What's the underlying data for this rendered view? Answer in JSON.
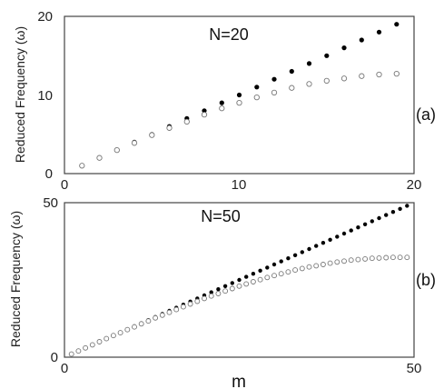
{
  "chart_data": [
    {
      "type": "scatter",
      "annotation": "N=20",
      "panel_label": "(a)",
      "xlabel": "",
      "ylabel": "Reduced Frequency (ω)",
      "xlim": [
        0,
        20
      ],
      "ylim": [
        0,
        20
      ],
      "x_ticks": [
        "0",
        "10",
        "20"
      ],
      "y_ticks": [
        "0",
        "10",
        "20"
      ],
      "grid": false,
      "series": [
        {
          "marker": "filled-circle",
          "x": [
            1,
            2,
            3,
            4,
            5,
            6,
            7,
            8,
            9,
            10,
            11,
            12,
            13,
            14,
            15,
            16,
            17,
            18,
            19
          ],
          "y": [
            1,
            2,
            3,
            4,
            5,
            6,
            7,
            8,
            9,
            10,
            11,
            12,
            13,
            14,
            15,
            16,
            17,
            18,
            19
          ]
        },
        {
          "marker": "open-circle",
          "x": [
            1,
            2,
            3,
            4,
            5,
            6,
            7,
            8,
            9,
            10,
            11,
            12,
            13,
            14,
            15,
            16,
            17,
            18,
            19
          ],
          "y": [
            1.0,
            2.0,
            3.0,
            3.9,
            4.9,
            5.8,
            6.6,
            7.5,
            8.3,
            9.0,
            9.7,
            10.3,
            10.9,
            11.4,
            11.8,
            12.1,
            12.4,
            12.6,
            12.7
          ]
        }
      ]
    },
    {
      "type": "scatter",
      "annotation": "N=50",
      "panel_label": "(b)",
      "xlabel": "m",
      "ylabel": "Reduced Frequency (ω)",
      "xlim": [
        0,
        50
      ],
      "ylim": [
        0,
        50
      ],
      "x_ticks": [
        "0",
        "50"
      ],
      "y_ticks": [
        "0",
        "50"
      ],
      "grid": false,
      "series": [
        {
          "marker": "filled-circle",
          "x": [
            1,
            2,
            3,
            4,
            5,
            6,
            7,
            8,
            9,
            10,
            11,
            12,
            13,
            14,
            15,
            16,
            17,
            18,
            19,
            20,
            21,
            22,
            23,
            24,
            25,
            26,
            27,
            28,
            29,
            30,
            31,
            32,
            33,
            34,
            35,
            36,
            37,
            38,
            39,
            40,
            41,
            42,
            43,
            44,
            45,
            46,
            47,
            48,
            49
          ],
          "y": [
            1,
            2,
            3,
            4,
            5,
            6,
            7,
            8,
            9,
            10,
            11,
            12,
            13,
            14,
            15,
            16,
            17,
            18,
            19,
            20,
            21,
            22,
            23,
            24,
            25,
            26,
            27,
            28,
            29,
            30,
            31,
            32,
            33,
            34,
            35,
            36,
            37,
            38,
            39,
            40,
            41,
            42,
            43,
            44,
            45,
            46,
            47,
            48,
            49
          ]
        },
        {
          "marker": "open-circle",
          "x": [
            1,
            2,
            3,
            4,
            5,
            6,
            7,
            8,
            9,
            10,
            11,
            12,
            13,
            14,
            15,
            16,
            17,
            18,
            19,
            20,
            21,
            22,
            23,
            24,
            25,
            26,
            27,
            28,
            29,
            30,
            31,
            32,
            33,
            34,
            35,
            36,
            37,
            38,
            39,
            40,
            41,
            42,
            43,
            44,
            45,
            46,
            47,
            48,
            49
          ],
          "y": [
            1.0,
            2.0,
            3.0,
            4.0,
            5.0,
            6.0,
            7.0,
            7.9,
            8.9,
            9.8,
            10.8,
            11.7,
            12.7,
            13.6,
            14.5,
            15.4,
            16.3,
            17.2,
            18.1,
            19.0,
            19.8,
            20.6,
            21.4,
            22.2,
            23.0,
            23.7,
            24.4,
            25.1,
            25.8,
            26.4,
            27.0,
            27.6,
            28.2,
            28.7,
            29.2,
            29.6,
            30.0,
            30.4,
            30.8,
            31.1,
            31.4,
            31.6,
            31.8,
            32.0,
            32.1,
            32.2,
            32.3,
            32.3,
            32.3
          ]
        }
      ]
    }
  ]
}
